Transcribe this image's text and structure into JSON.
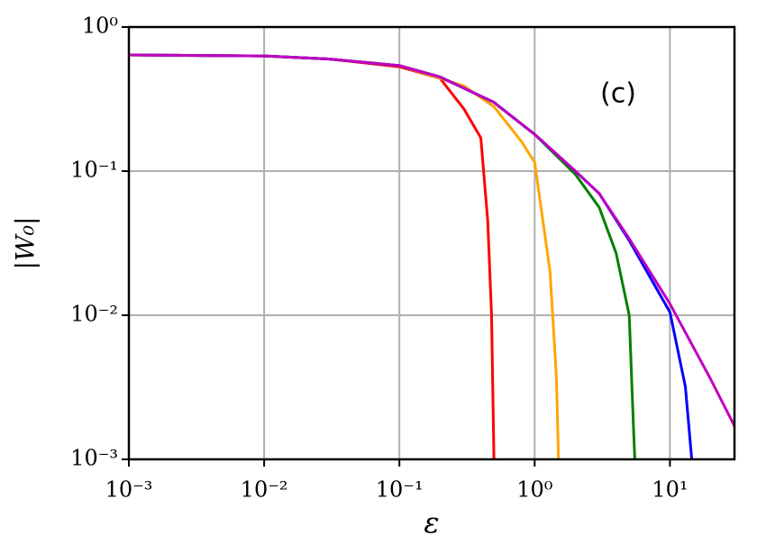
{
  "chart_data": {
    "type": "line",
    "xlabel": "ε",
    "ylabel": "|W₀|",
    "annotation": "(c)",
    "xscale": "log",
    "yscale": "log",
    "grid": true,
    "xlim": [
      0.001,
      30
    ],
    "ylim": [
      0.001,
      1
    ],
    "xticks": [
      {
        "value": 0.001,
        "label": "10⁻³"
      },
      {
        "value": 0.01,
        "label": "10⁻²"
      },
      {
        "value": 0.1,
        "label": "10⁻¹"
      },
      {
        "value": 1,
        "label": "10⁰"
      },
      {
        "value": 10,
        "label": "10¹"
      }
    ],
    "yticks": [
      {
        "value": 0.001,
        "label": "10⁻³"
      },
      {
        "value": 0.01,
        "label": "10⁻²"
      },
      {
        "value": 0.1,
        "label": "10⁻¹"
      },
      {
        "value": 1,
        "label": "10⁰"
      }
    ],
    "series": [
      {
        "color": "#ff0000",
        "x": [
          0.001,
          0.01,
          0.03,
          0.1,
          0.2,
          0.3,
          0.4,
          0.45,
          0.48,
          0.5
        ],
        "values": [
          0.64,
          0.63,
          0.6,
          0.53,
          0.44,
          0.27,
          0.17,
          0.045,
          0.01,
          0.001
        ]
      },
      {
        "color": "#ffa500",
        "x": [
          0.001,
          0.01,
          0.03,
          0.1,
          0.3,
          0.5,
          0.8,
          1,
          1.3,
          1.45,
          1.5
        ],
        "values": [
          0.64,
          0.63,
          0.6,
          0.54,
          0.39,
          0.28,
          0.16,
          0.115,
          0.02,
          0.0036,
          0.001
        ]
      },
      {
        "color": "#008000",
        "x": [
          0.001,
          0.01,
          0.03,
          0.1,
          0.2,
          0.5,
          1,
          2,
          3,
          4,
          5,
          5.4,
          5.5
        ],
        "values": [
          0.64,
          0.63,
          0.6,
          0.54,
          0.45,
          0.3,
          0.18,
          0.095,
          0.056,
          0.027,
          0.01,
          0.0015,
          0.001
        ]
      },
      {
        "color": "#0000ff",
        "x": [
          0.001,
          0.01,
          0.03,
          0.1,
          0.2,
          0.5,
          1,
          2,
          3,
          5,
          10,
          13,
          14.5
        ],
        "values": [
          0.64,
          0.63,
          0.6,
          0.54,
          0.45,
          0.3,
          0.18,
          0.1,
          0.07,
          0.033,
          0.0105,
          0.0032,
          0.001
        ]
      },
      {
        "color": "#c000c0",
        "x": [
          0.001,
          0.01,
          0.03,
          0.1,
          0.2,
          0.5,
          1,
          2,
          3,
          5,
          10,
          20,
          30
        ],
        "values": [
          0.64,
          0.63,
          0.6,
          0.54,
          0.45,
          0.3,
          0.18,
          0.1,
          0.07,
          0.034,
          0.012,
          0.0036,
          0.0017
        ]
      }
    ]
  }
}
